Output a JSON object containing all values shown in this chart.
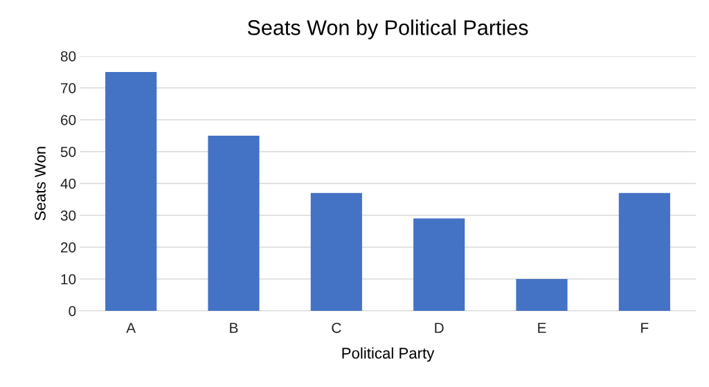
{
  "chart_data": {
    "type": "bar",
    "title": "Seats Won by Political Parties",
    "xlabel": "Political Party",
    "ylabel": "Seats Won",
    "categories": [
      "A",
      "B",
      "C",
      "D",
      "E",
      "F"
    ],
    "values": [
      75,
      55,
      37,
      29,
      10,
      37
    ],
    "color": "#4472c4",
    "ylim": [
      0,
      80
    ],
    "yticks": [
      0,
      10,
      20,
      30,
      40,
      50,
      60,
      70,
      80
    ],
    "grid": "y",
    "legend": false
  }
}
